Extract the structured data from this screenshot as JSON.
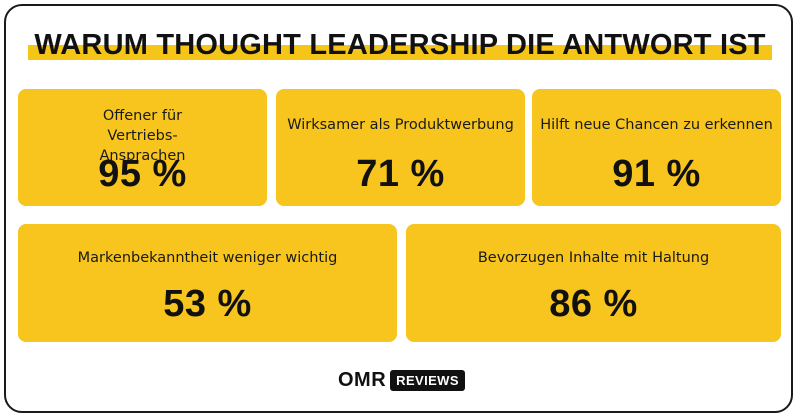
{
  "title": "WARUM THOUGHT LEADERSHIP DIE ANTWORT IST",
  "cards": [
    {
      "label": "Offener für Vertriebs-Ansprachen",
      "value": "95 %"
    },
    {
      "label": "Wirksamer als Produktwerbung",
      "value": "71 %"
    },
    {
      "label": "Hilft neue Chancen zu erkennen",
      "value": "91 %"
    },
    {
      "label": "Markenbekanntheit weniger wichtig",
      "value": "53 %"
    },
    {
      "label": "Bevorzugen Inhalte mit Haltung",
      "value": "86 %"
    }
  ],
  "logo": {
    "brand": "OMR",
    "badge": "REVIEWS"
  },
  "colors": {
    "card": "#f7c51e",
    "highlight": "#f5c518",
    "text": "#111111"
  }
}
